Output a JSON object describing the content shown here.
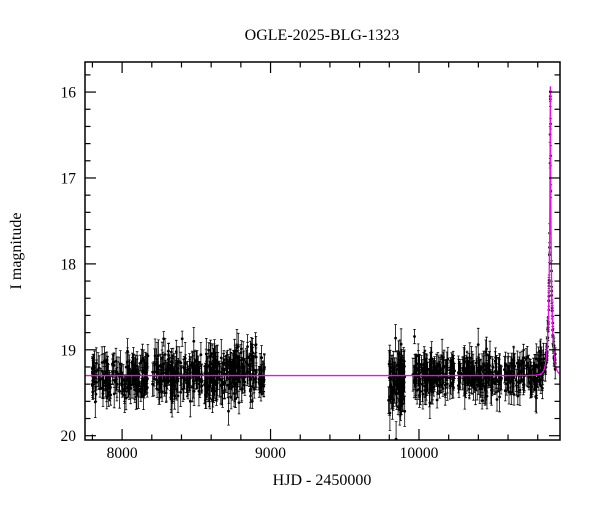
{
  "figure": {
    "title": "OGLE-2025-BLG-1323",
    "xlabel": "HJD - 2450000",
    "ylabel": "I magnitude"
  },
  "chart_data": {
    "type": "scatter",
    "title": "OGLE-2025-BLG-1323",
    "xlabel": "HJD - 2450000",
    "ylabel": "I magnitude",
    "xlim": [
      7750,
      10950
    ],
    "ylim": [
      15.65,
      20.05
    ],
    "y_inverted": true,
    "grid": false,
    "legend": "none",
    "x_major_ticks": [
      8000,
      9000,
      10000
    ],
    "x_minor_step": 200,
    "y_major_ticks": [
      16,
      17,
      18,
      19,
      20
    ],
    "y_minor_step": 0.2,
    "point_color": "#000000",
    "model_color": "#e511e5",
    "baseline_mag": 19.3,
    "model": {
      "type": "microlensing-PSPL",
      "t0": 10885,
      "tE": 22,
      "u0": 0.045,
      "baseline_mag": 19.3,
      "peak_mag": 15.95
    },
    "data_segments": [
      {
        "x_start": 7790,
        "x_end": 8175,
        "n": 170,
        "mean_mag": 19.33,
        "sigma": 0.12,
        "err_min": 0.08,
        "err_max": 0.2
      },
      {
        "x_start": 8195,
        "x_end": 8540,
        "n": 170,
        "mean_mag": 19.3,
        "sigma": 0.13,
        "err_min": 0.08,
        "err_max": 0.2
      },
      {
        "x_start": 8555,
        "x_end": 8905,
        "n": 190,
        "mean_mag": 19.28,
        "sigma": 0.15,
        "err_min": 0.08,
        "err_max": 0.22
      },
      {
        "x_start": 8915,
        "x_end": 8960,
        "n": 22,
        "mean_mag": 19.3,
        "sigma": 0.13,
        "err_min": 0.08,
        "err_max": 0.2
      },
      {
        "x_start": 9795,
        "x_end": 9905,
        "n": 95,
        "mean_mag": 19.35,
        "sigma": 0.18,
        "err_min": 0.08,
        "err_max": 0.22
      },
      {
        "x_start": 9955,
        "x_end": 10245,
        "n": 150,
        "mean_mag": 19.3,
        "sigma": 0.12,
        "err_min": 0.08,
        "err_max": 0.2
      },
      {
        "x_start": 10265,
        "x_end": 10560,
        "n": 140,
        "mean_mag": 19.3,
        "sigma": 0.12,
        "err_min": 0.08,
        "err_max": 0.2
      },
      {
        "x_start": 10575,
        "x_end": 10845,
        "n": 120,
        "mean_mag": 19.28,
        "sigma": 0.11,
        "err_min": 0.08,
        "err_max": 0.18
      },
      {
        "x_start": 10848,
        "x_end": 10918,
        "n": 60,
        "follows_model": true,
        "sigma": 0.05,
        "err_min": 0.05,
        "err_max": 0.12
      }
    ],
    "peak_points": [
      {
        "x": 10884.5,
        "mag": 16.05,
        "err": 0.06
      },
      {
        "x": 10885.8,
        "mag": 16.37,
        "err": 0.06
      }
    ]
  }
}
